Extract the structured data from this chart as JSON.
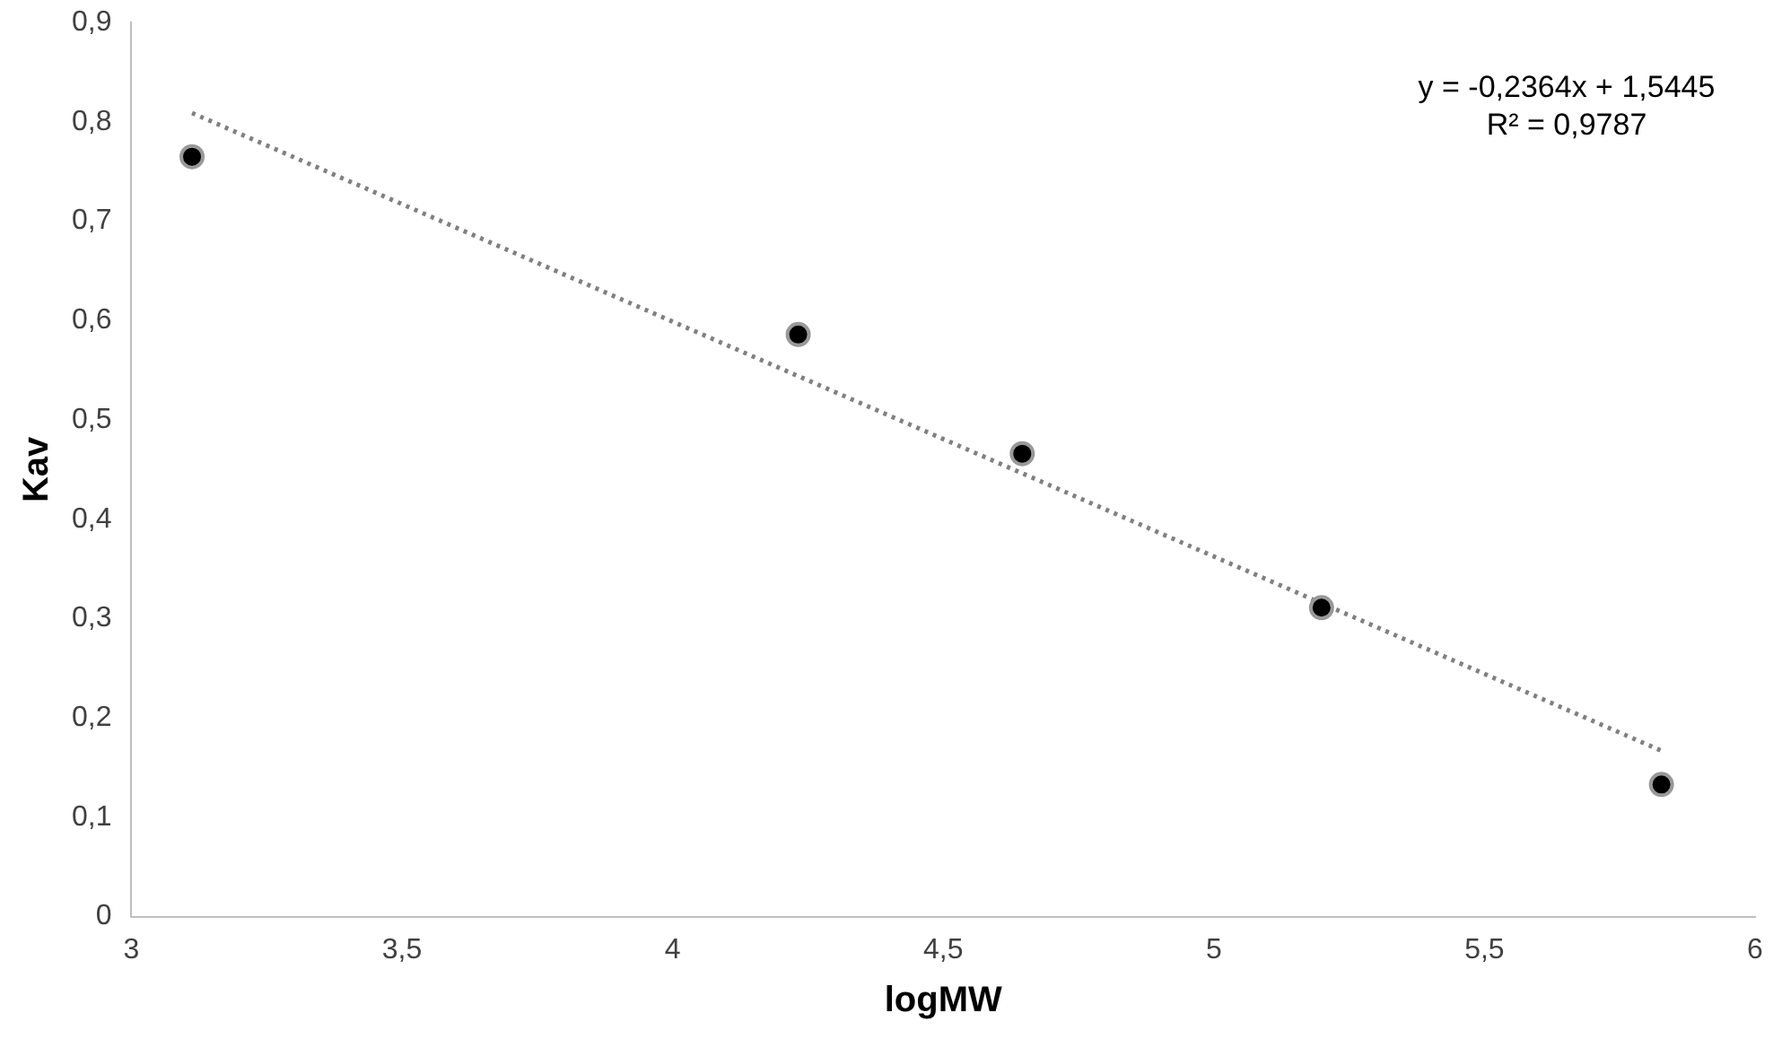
{
  "chart_data": {
    "type": "scatter",
    "xlabel": "logMW",
    "ylabel": "Kav",
    "series": [
      {
        "type": "scatter",
        "color": "#000000",
        "x": [
          3.112,
          4.232,
          4.646,
          5.199,
          5.827
        ],
        "values": [
          0.765,
          0.586,
          0.466,
          0.311,
          0.133
        ],
        "marker": "circle"
      },
      {
        "type": "line",
        "color": "#808080",
        "x": [
          3.112,
          5.827
        ],
        "values": [
          0.809,
          0.167
        ],
        "line_style": "dotted",
        "marker": "none"
      }
    ],
    "annotations": [
      "y = -0,2364x + 1,5445",
      "R² = 0,9787"
    ],
    "xlim": [
      3,
      6
    ],
    "xticks": [
      3,
      {
        "value": 3.5,
        "label": "3,5"
      },
      4,
      {
        "value": 4.5,
        "label": "4,5"
      },
      5,
      {
        "value": 5.5,
        "label": "5,5"
      },
      6
    ],
    "ylim": [
      0,
      0.9
    ],
    "yticks": [
      0,
      {
        "value": 0.1,
        "label": "0,1"
      },
      {
        "value": 0.2,
        "label": "0,2"
      },
      {
        "value": 0.3,
        "label": "0,3"
      },
      {
        "value": 0.4,
        "label": "0,4"
      },
      {
        "value": 0.5,
        "label": "0,5"
      },
      {
        "value": 0.6,
        "label": "0,6"
      },
      {
        "value": 0.7,
        "label": "0,7"
      },
      {
        "value": 0.8,
        "label": "0,8"
      },
      {
        "value": 0.9,
        "label": "0,9"
      }
    ],
    "grid": false,
    "legend": false
  }
}
